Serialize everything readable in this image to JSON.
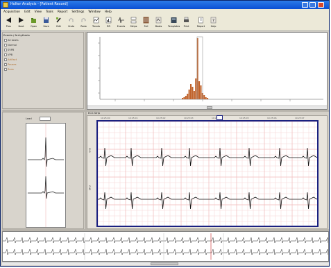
{
  "window": {
    "title": "Holter Analysis - [Patient Record]",
    "accent": "#0a4fd4"
  },
  "menu": [
    "Acquisition",
    "Edit",
    "View",
    "Tools",
    "Report",
    "Settings",
    "Window",
    "Help"
  ],
  "toolbar": {
    "buttons": [
      {
        "label": "Prev",
        "icon": "arrow-left-icon"
      },
      {
        "label": "Next",
        "icon": "arrow-right-icon"
      },
      {
        "label": "Open",
        "icon": "open-icon"
      },
      {
        "label": "Save",
        "icon": "save-icon"
      },
      {
        "label": "Edit",
        "icon": "edit-icon"
      },
      {
        "label": "Undo",
        "icon": "undo-icon"
      },
      {
        "label": "Redo",
        "icon": "redo-icon"
      },
      {
        "label": "Trends",
        "icon": "trends-icon"
      },
      {
        "label": "RR",
        "icon": "rr-icon"
      },
      {
        "label": "Events",
        "icon": "events-icon"
      },
      {
        "label": "Strips",
        "icon": "strips-icon"
      },
      {
        "label": "Full",
        "icon": "full-disclosure-icon"
      },
      {
        "label": "Beats",
        "icon": "beats-icon"
      },
      {
        "label": "Templates",
        "icon": "templates-icon"
      },
      {
        "label": "Print",
        "icon": "print-icon"
      },
      {
        "label": "Report",
        "icon": "report-icon"
      },
      {
        "label": "Help",
        "icon": "help-icon"
      }
    ]
  },
  "tree": {
    "header": "Events / Arrhythmia",
    "items": [
      "All beats",
      "Normal",
      "SVPB",
      "VPB",
      "Artifact",
      "Pauses",
      "Runs"
    ]
  },
  "template": {
    "label": "Lead"
  },
  "ecg": {
    "header": "ECG Strip",
    "time_labels": [
      "10:25:00",
      "10:25:01",
      "10:25:02",
      "10:25:03",
      "10:25:04",
      "10:25:05",
      "10:25:06",
      "10:25:07"
    ],
    "channel_labels": [
      "CH1",
      "CH2"
    ],
    "grid_color": "#f0b8b8",
    "border_color": "#1a2080"
  },
  "histogram": {
    "color": "#c0622a"
  }
}
